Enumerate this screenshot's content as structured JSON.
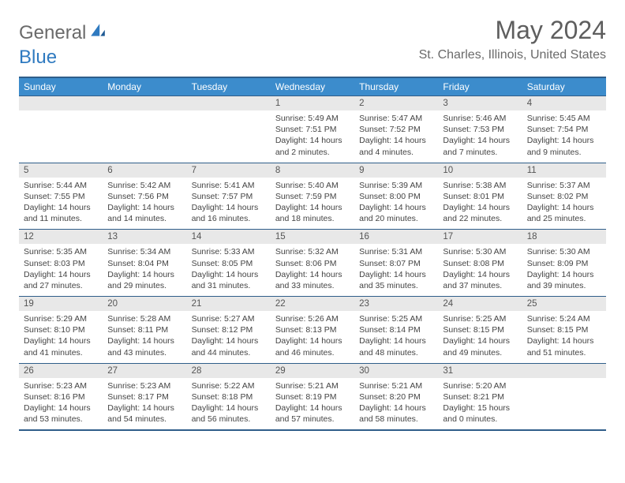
{
  "brand": {
    "part1": "General",
    "part2": "Blue"
  },
  "title": "May 2024",
  "location": "St. Charles, Illinois, United States",
  "colors": {
    "header_bg": "#3c8ccc",
    "header_text": "#ffffff",
    "border": "#2f5e8a",
    "daynum_bg": "#e8e8e8",
    "text": "#444444",
    "brand_gray": "#6a6a6a",
    "brand_blue": "#2f7ac0"
  },
  "weekdays": [
    "Sunday",
    "Monday",
    "Tuesday",
    "Wednesday",
    "Thursday",
    "Friday",
    "Saturday"
  ],
  "weeks": [
    [
      {
        "n": "",
        "sr": "",
        "ss": "",
        "dl": ""
      },
      {
        "n": "",
        "sr": "",
        "ss": "",
        "dl": ""
      },
      {
        "n": "",
        "sr": "",
        "ss": "",
        "dl": ""
      },
      {
        "n": "1",
        "sr": "Sunrise: 5:49 AM",
        "ss": "Sunset: 7:51 PM",
        "dl": "Daylight: 14 hours and 2 minutes."
      },
      {
        "n": "2",
        "sr": "Sunrise: 5:47 AM",
        "ss": "Sunset: 7:52 PM",
        "dl": "Daylight: 14 hours and 4 minutes."
      },
      {
        "n": "3",
        "sr": "Sunrise: 5:46 AM",
        "ss": "Sunset: 7:53 PM",
        "dl": "Daylight: 14 hours and 7 minutes."
      },
      {
        "n": "4",
        "sr": "Sunrise: 5:45 AM",
        "ss": "Sunset: 7:54 PM",
        "dl": "Daylight: 14 hours and 9 minutes."
      }
    ],
    [
      {
        "n": "5",
        "sr": "Sunrise: 5:44 AM",
        "ss": "Sunset: 7:55 PM",
        "dl": "Daylight: 14 hours and 11 minutes."
      },
      {
        "n": "6",
        "sr": "Sunrise: 5:42 AM",
        "ss": "Sunset: 7:56 PM",
        "dl": "Daylight: 14 hours and 14 minutes."
      },
      {
        "n": "7",
        "sr": "Sunrise: 5:41 AM",
        "ss": "Sunset: 7:57 PM",
        "dl": "Daylight: 14 hours and 16 minutes."
      },
      {
        "n": "8",
        "sr": "Sunrise: 5:40 AM",
        "ss": "Sunset: 7:59 PM",
        "dl": "Daylight: 14 hours and 18 minutes."
      },
      {
        "n": "9",
        "sr": "Sunrise: 5:39 AM",
        "ss": "Sunset: 8:00 PM",
        "dl": "Daylight: 14 hours and 20 minutes."
      },
      {
        "n": "10",
        "sr": "Sunrise: 5:38 AM",
        "ss": "Sunset: 8:01 PM",
        "dl": "Daylight: 14 hours and 22 minutes."
      },
      {
        "n": "11",
        "sr": "Sunrise: 5:37 AM",
        "ss": "Sunset: 8:02 PM",
        "dl": "Daylight: 14 hours and 25 minutes."
      }
    ],
    [
      {
        "n": "12",
        "sr": "Sunrise: 5:35 AM",
        "ss": "Sunset: 8:03 PM",
        "dl": "Daylight: 14 hours and 27 minutes."
      },
      {
        "n": "13",
        "sr": "Sunrise: 5:34 AM",
        "ss": "Sunset: 8:04 PM",
        "dl": "Daylight: 14 hours and 29 minutes."
      },
      {
        "n": "14",
        "sr": "Sunrise: 5:33 AM",
        "ss": "Sunset: 8:05 PM",
        "dl": "Daylight: 14 hours and 31 minutes."
      },
      {
        "n": "15",
        "sr": "Sunrise: 5:32 AM",
        "ss": "Sunset: 8:06 PM",
        "dl": "Daylight: 14 hours and 33 minutes."
      },
      {
        "n": "16",
        "sr": "Sunrise: 5:31 AM",
        "ss": "Sunset: 8:07 PM",
        "dl": "Daylight: 14 hours and 35 minutes."
      },
      {
        "n": "17",
        "sr": "Sunrise: 5:30 AM",
        "ss": "Sunset: 8:08 PM",
        "dl": "Daylight: 14 hours and 37 minutes."
      },
      {
        "n": "18",
        "sr": "Sunrise: 5:30 AM",
        "ss": "Sunset: 8:09 PM",
        "dl": "Daylight: 14 hours and 39 minutes."
      }
    ],
    [
      {
        "n": "19",
        "sr": "Sunrise: 5:29 AM",
        "ss": "Sunset: 8:10 PM",
        "dl": "Daylight: 14 hours and 41 minutes."
      },
      {
        "n": "20",
        "sr": "Sunrise: 5:28 AM",
        "ss": "Sunset: 8:11 PM",
        "dl": "Daylight: 14 hours and 43 minutes."
      },
      {
        "n": "21",
        "sr": "Sunrise: 5:27 AM",
        "ss": "Sunset: 8:12 PM",
        "dl": "Daylight: 14 hours and 44 minutes."
      },
      {
        "n": "22",
        "sr": "Sunrise: 5:26 AM",
        "ss": "Sunset: 8:13 PM",
        "dl": "Daylight: 14 hours and 46 minutes."
      },
      {
        "n": "23",
        "sr": "Sunrise: 5:25 AM",
        "ss": "Sunset: 8:14 PM",
        "dl": "Daylight: 14 hours and 48 minutes."
      },
      {
        "n": "24",
        "sr": "Sunrise: 5:25 AM",
        "ss": "Sunset: 8:15 PM",
        "dl": "Daylight: 14 hours and 49 minutes."
      },
      {
        "n": "25",
        "sr": "Sunrise: 5:24 AM",
        "ss": "Sunset: 8:15 PM",
        "dl": "Daylight: 14 hours and 51 minutes."
      }
    ],
    [
      {
        "n": "26",
        "sr": "Sunrise: 5:23 AM",
        "ss": "Sunset: 8:16 PM",
        "dl": "Daylight: 14 hours and 53 minutes."
      },
      {
        "n": "27",
        "sr": "Sunrise: 5:23 AM",
        "ss": "Sunset: 8:17 PM",
        "dl": "Daylight: 14 hours and 54 minutes."
      },
      {
        "n": "28",
        "sr": "Sunrise: 5:22 AM",
        "ss": "Sunset: 8:18 PM",
        "dl": "Daylight: 14 hours and 56 minutes."
      },
      {
        "n": "29",
        "sr": "Sunrise: 5:21 AM",
        "ss": "Sunset: 8:19 PM",
        "dl": "Daylight: 14 hours and 57 minutes."
      },
      {
        "n": "30",
        "sr": "Sunrise: 5:21 AM",
        "ss": "Sunset: 8:20 PM",
        "dl": "Daylight: 14 hours and 58 minutes."
      },
      {
        "n": "31",
        "sr": "Sunrise: 5:20 AM",
        "ss": "Sunset: 8:21 PM",
        "dl": "Daylight: 15 hours and 0 minutes."
      },
      {
        "n": "",
        "sr": "",
        "ss": "",
        "dl": ""
      }
    ]
  ]
}
